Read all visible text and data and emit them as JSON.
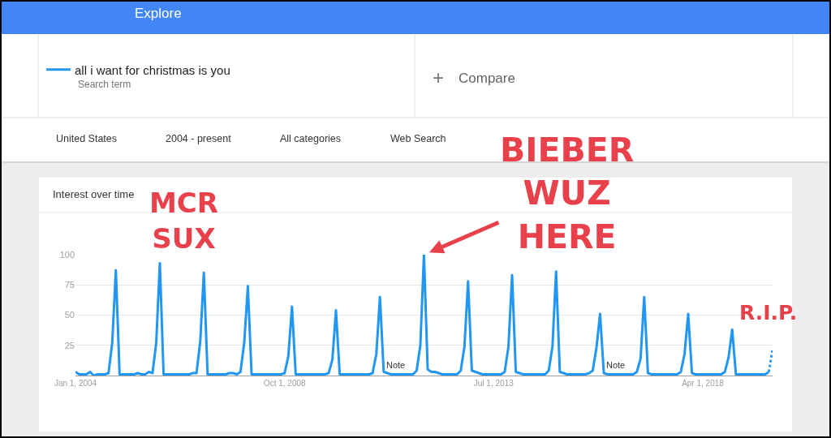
{
  "chart_data": {
    "type": "line",
    "title": "Interest over time",
    "x": [
      "2004-01",
      "2004-02",
      "2004-03",
      "2004-04",
      "2004-05",
      "2004-06",
      "2004-07",
      "2004-08",
      "2004-09",
      "2004-10",
      "2004-11",
      "2004-12",
      "2005-01",
      "2005-02",
      "2005-03",
      "2005-04",
      "2005-05",
      "2005-06",
      "2005-07",
      "2005-08",
      "2005-09",
      "2005-10",
      "2005-11",
      "2005-12",
      "2006-01",
      "2006-02",
      "2006-03",
      "2006-04",
      "2006-05",
      "2006-06",
      "2006-07",
      "2006-08",
      "2006-09",
      "2006-10",
      "2006-11",
      "2006-12",
      "2007-01",
      "2007-02",
      "2007-03",
      "2007-04",
      "2007-05",
      "2007-06",
      "2007-07",
      "2007-08",
      "2007-09",
      "2007-10",
      "2007-11",
      "2007-12",
      "2008-01",
      "2008-02",
      "2008-03",
      "2008-04",
      "2008-05",
      "2008-06",
      "2008-07",
      "2008-08",
      "2008-09",
      "2008-10",
      "2008-11",
      "2008-12",
      "2009-01",
      "2009-02",
      "2009-03",
      "2009-04",
      "2009-05",
      "2009-06",
      "2009-07",
      "2009-08",
      "2009-09",
      "2009-10",
      "2009-11",
      "2009-12",
      "2010-01",
      "2010-02",
      "2010-03",
      "2010-04",
      "2010-05",
      "2010-06",
      "2010-07",
      "2010-08",
      "2010-09",
      "2010-10",
      "2010-11",
      "2010-12",
      "2011-01",
      "2011-02",
      "2011-03",
      "2011-04",
      "2011-05",
      "2011-06",
      "2011-07",
      "2011-08",
      "2011-09",
      "2011-10",
      "2011-11",
      "2011-12",
      "2012-01",
      "2012-02",
      "2012-03",
      "2012-04",
      "2012-05",
      "2012-06",
      "2012-07",
      "2012-08",
      "2012-09",
      "2012-10",
      "2012-11",
      "2012-12",
      "2013-01",
      "2013-02",
      "2013-03",
      "2013-04",
      "2013-05",
      "2013-06",
      "2013-07",
      "2013-08",
      "2013-09",
      "2013-10",
      "2013-11",
      "2013-12",
      "2014-01",
      "2014-02",
      "2014-03",
      "2014-04",
      "2014-05",
      "2014-06",
      "2014-07",
      "2014-08",
      "2014-09",
      "2014-10",
      "2014-11",
      "2014-12",
      "2015-01",
      "2015-02",
      "2015-03",
      "2015-04",
      "2015-05",
      "2015-06",
      "2015-07",
      "2015-08",
      "2015-09",
      "2015-10",
      "2015-11",
      "2015-12",
      "2016-01",
      "2016-02",
      "2016-03",
      "2016-04",
      "2016-05",
      "2016-06",
      "2016-07",
      "2016-08",
      "2016-09",
      "2016-10",
      "2016-11",
      "2016-12",
      "2017-01",
      "2017-02",
      "2017-03",
      "2017-04",
      "2017-05",
      "2017-06",
      "2017-07",
      "2017-08",
      "2017-09",
      "2017-10",
      "2017-11",
      "2017-12",
      "2018-01",
      "2018-02",
      "2018-03",
      "2018-04",
      "2018-05",
      "2018-06",
      "2018-07",
      "2018-08",
      "2018-09",
      "2018-10",
      "2018-11",
      "2018-12",
      "2019-01",
      "2019-02",
      "2019-03",
      "2019-04",
      "2019-05",
      "2019-06",
      "2019-07",
      "2019-08",
      "2019-09",
      "2019-10"
    ],
    "series": [
      {
        "name": "all i want for christmas is you",
        "color": "#2196f3",
        "values": [
          3,
          1,
          1,
          1,
          3,
          0,
          1,
          1,
          1,
          2,
          27,
          87,
          1,
          1,
          1,
          1,
          1,
          2,
          1,
          1,
          3,
          2,
          27,
          93,
          1,
          1,
          1,
          1,
          1,
          1,
          1,
          1,
          2,
          2,
          28,
          85,
          1,
          1,
          1,
          1,
          1,
          1,
          2,
          2,
          1,
          3,
          27,
          74,
          1,
          1,
          1,
          1,
          1,
          1,
          1,
          1,
          1,
          2,
          16,
          57,
          1,
          1,
          1,
          1,
          1,
          1,
          1,
          1,
          1,
          2,
          13,
          54,
          1,
          1,
          1,
          1,
          1,
          1,
          1,
          1,
          1,
          2,
          18,
          65,
          3,
          2,
          1,
          1,
          1,
          1,
          1,
          1,
          1,
          4,
          25,
          100,
          5,
          3,
          3,
          2,
          1,
          1,
          1,
          1,
          1,
          4,
          24,
          78,
          4,
          3,
          2,
          1,
          1,
          1,
          1,
          1,
          1,
          3,
          24,
          83,
          3,
          2,
          1,
          1,
          1,
          1,
          1,
          1,
          1,
          4,
          24,
          86,
          3,
          2,
          1,
          1,
          1,
          1,
          1,
          1,
          2,
          4,
          23,
          51,
          2,
          1,
          1,
          1,
          1,
          1,
          1,
          1,
          1,
          3,
          14,
          65,
          2,
          1,
          1,
          1,
          1,
          1,
          1,
          1,
          1,
          3,
          18,
          51,
          2,
          1,
          1,
          1,
          1,
          1,
          1,
          1,
          1,
          3,
          15,
          38,
          1,
          1,
          1,
          1,
          1,
          1,
          1,
          1,
          1,
          3
        ]
      },
      {
        "color": "#2196f3",
        "x": [
          "2019-10",
          "2019-11"
        ],
        "values": [
          3,
          22
        ],
        "line_style": "dotted"
      }
    ],
    "xlim": [
      "2004-01",
      "2019-11"
    ],
    "xticks": [
      {
        "value": "2004-01-01",
        "label": "Jan 1, 2004"
      },
      {
        "value": "2008-10-01",
        "label": "Oct 1, 2008"
      },
      {
        "value": "2013-07-01",
        "label": "Jul 1, 2013"
      },
      {
        "value": "2018-04-01",
        "label": "Apr 1, 2018"
      }
    ],
    "ylim": [
      0,
      100
    ],
    "yticks": [
      25,
      50,
      75,
      100
    ],
    "grid": "y",
    "legend": "top left",
    "annotations": [
      "Explore",
      "Search term",
      "+",
      "Compare",
      "United States",
      "2004 - present",
      "All categories",
      "Web Search",
      "MCR\nSUX",
      {
        "text": "BIEBER\nWUZ\nHERE",
        "x": "2011-12",
        "y": 100
      },
      "R.I.P.",
      {
        "text": "Note",
        "x": "2011-01",
        "y": 0
      },
      {
        "text": "Note",
        "x": "2016-01",
        "y": 0
      }
    ]
  }
}
